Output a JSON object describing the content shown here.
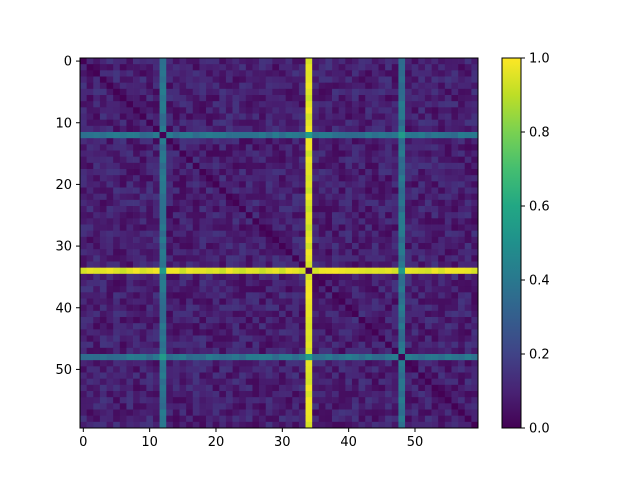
{
  "chart_data": {
    "type": "heatmap",
    "title": "",
    "xlabel": "",
    "ylabel": "",
    "rows": 60,
    "cols": 60,
    "xlim": [
      -0.5,
      59.5
    ],
    "ylim": [
      59.5,
      -0.5
    ],
    "x_ticks": [
      0,
      10,
      20,
      30,
      40,
      50
    ],
    "y_ticks": [
      0,
      10,
      20,
      30,
      40,
      50
    ],
    "colormap": "viridis",
    "colorbar": {
      "vmin": 0.0,
      "vmax": 1.0,
      "ticks": [
        "0.0",
        "0.2",
        "0.4",
        "0.6",
        "0.8",
        "1.0"
      ],
      "tick_values": [
        0.0,
        0.2,
        0.4,
        0.6,
        0.8,
        1.0
      ]
    },
    "highlight_lines": [
      {
        "index": 34,
        "value": 0.95,
        "description": "bright band"
      },
      {
        "index": 12,
        "value": 0.38,
        "description": "medium band"
      },
      {
        "index": 48,
        "value": 0.38,
        "description": "medium band"
      }
    ],
    "diagonal_value": 0.0,
    "background_range": [
      0.02,
      0.16
    ]
  }
}
